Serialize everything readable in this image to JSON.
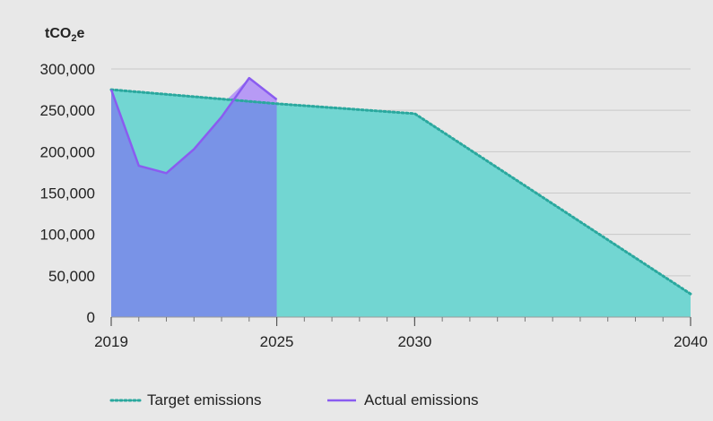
{
  "chart_data": {
    "type": "area",
    "unit_label": {
      "base": "tCO",
      "sub": "2",
      "suffix": "e"
    },
    "x_ticks": [
      2019,
      2025,
      2030,
      2040
    ],
    "y_ticks": [
      "0",
      "50,000",
      "100,000",
      "150,000",
      "200,000",
      "250,000",
      "300,000"
    ],
    "y_tick_values": [
      0,
      50000,
      100000,
      150000,
      200000,
      250000,
      300000
    ],
    "xlim": [
      2019,
      2040
    ],
    "ylim": [
      0,
      300000
    ],
    "grid": true,
    "legend_position": "bottom",
    "series": [
      {
        "name": "Target emissions",
        "color": "#3fc7bf",
        "fill": "#72d6d2",
        "style": "dotted",
        "x": [
          2019,
          2025,
          2030,
          2040
        ],
        "y": [
          275000,
          258000,
          246000,
          28000
        ]
      },
      {
        "name": "Actual emissions",
        "color": "#8a5cf0",
        "fill": "#7a8de8",
        "style": "solid",
        "x": [
          2019,
          2020,
          2021,
          2022,
          2023,
          2024,
          2025
        ],
        "y": [
          275000,
          183000,
          174000,
          203000,
          242000,
          289000,
          263000
        ]
      }
    ]
  }
}
